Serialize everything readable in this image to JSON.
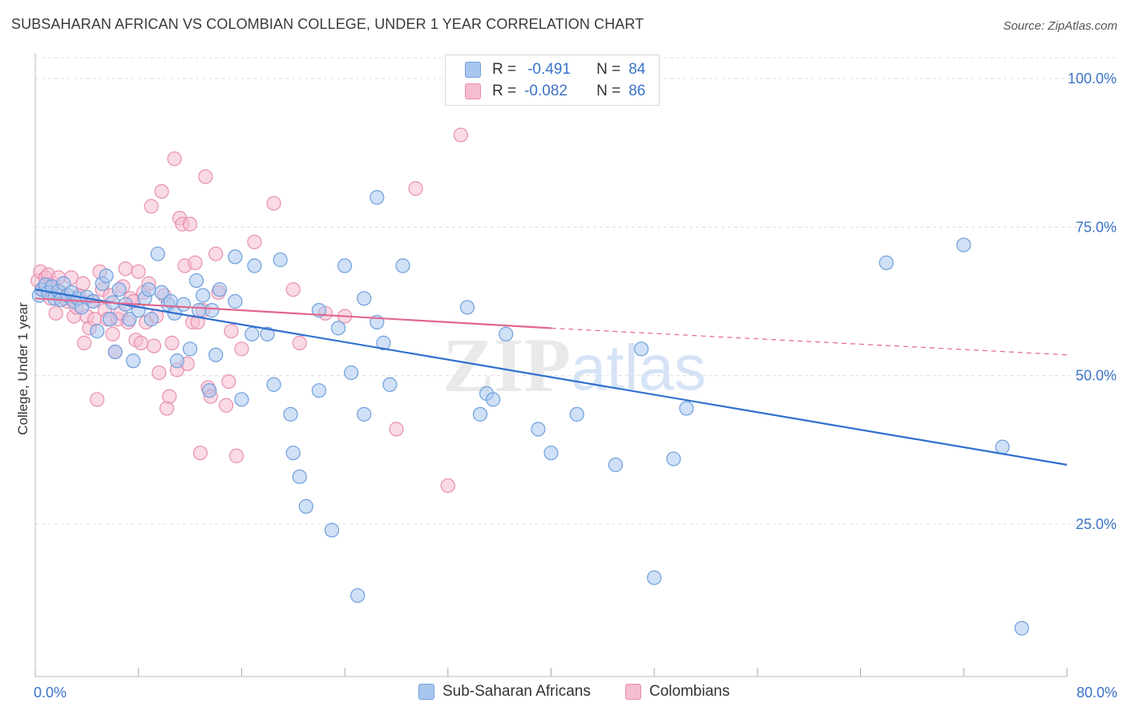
{
  "title": "SUBSAHARAN AFRICAN VS COLOMBIAN COLLEGE, UNDER 1 YEAR CORRELATION CHART",
  "source": "Source: ZipAtlas.com",
  "watermark": {
    "zip": "ZIP",
    "atlas": "atlas"
  },
  "legend": {
    "r_label": "R =",
    "n_label": "N =",
    "rows": [
      {
        "r": "-0.491",
        "n": "84"
      },
      {
        "r": "-0.082",
        "n": "86"
      }
    ]
  },
  "colors": {
    "blue_fill": "#a9c6ef",
    "blue_stroke": "#6e9fdc",
    "blue_line": "#2f6fce",
    "pink_fill": "#f6bcd0",
    "pink_stroke": "#e88fae",
    "pink_line": "#e2668e",
    "axis_text": "#3b73c8",
    "grid": "#dcdcdc"
  },
  "chart_data": {
    "type": "scatter",
    "title": "SUBSAHARAN AFRICAN VS COLOMBIAN COLLEGE, UNDER 1 YEAR CORRELATION CHART",
    "xlabel": "",
    "ylabel": "College, Under 1 year",
    "xlim": [
      0,
      80
    ],
    "ylim": [
      0,
      105
    ],
    "x_tick_labels": [
      "0.0%",
      "80.0%"
    ],
    "y_ticks": [
      25,
      50,
      75,
      100
    ],
    "y_tick_labels": [
      "25.0%",
      "50.0%",
      "75.0%",
      "100.0%"
    ],
    "legend_position": "top-center",
    "series": [
      {
        "name": "Sub-Saharan Africans",
        "R": -0.491,
        "N": 84,
        "trend": {
          "x0": 0,
          "y0": 64.5,
          "x1": 80,
          "y1": 35.0
        },
        "points": [
          [
            0.3,
            63.5
          ],
          [
            0.5,
            64.5
          ],
          [
            0.8,
            65.3
          ],
          [
            1.0,
            64.0
          ],
          [
            1.3,
            65.0
          ],
          [
            1.5,
            63.0
          ],
          [
            1.8,
            64.2
          ],
          [
            2.0,
            62.8
          ],
          [
            2.2,
            65.5
          ],
          [
            2.5,
            63.5
          ],
          [
            2.8,
            64.0
          ],
          [
            3.0,
            62.5
          ],
          [
            3.3,
            63.0
          ],
          [
            3.6,
            61.5
          ],
          [
            4.0,
            63.2
          ],
          [
            4.5,
            62.5
          ],
          [
            4.8,
            57.5
          ],
          [
            5.2,
            65.5
          ],
          [
            5.5,
            66.8
          ],
          [
            5.8,
            59.5
          ],
          [
            6.0,
            62.3
          ],
          [
            6.2,
            54.0
          ],
          [
            6.5,
            64.5
          ],
          [
            7.0,
            62.0
          ],
          [
            7.3,
            59.5
          ],
          [
            7.6,
            52.5
          ],
          [
            8.0,
            61.0
          ],
          [
            8.5,
            63.0
          ],
          [
            8.8,
            64.5
          ],
          [
            9.0,
            59.5
          ],
          [
            9.5,
            70.5
          ],
          [
            9.8,
            64.0
          ],
          [
            10.3,
            62.0
          ],
          [
            10.5,
            62.5
          ],
          [
            10.8,
            60.5
          ],
          [
            11.0,
            52.5
          ],
          [
            11.5,
            62.0
          ],
          [
            12.0,
            54.5
          ],
          [
            12.5,
            66.0
          ],
          [
            12.7,
            61.0
          ],
          [
            13.0,
            63.5
          ],
          [
            13.5,
            47.5
          ],
          [
            13.7,
            61.0
          ],
          [
            14.0,
            53.5
          ],
          [
            14.3,
            64.5
          ],
          [
            15.5,
            70.0
          ],
          [
            15.5,
            62.5
          ],
          [
            16.0,
            46.0
          ],
          [
            16.8,
            57.0
          ],
          [
            17.0,
            68.5
          ],
          [
            18.0,
            57.0
          ],
          [
            18.5,
            48.5
          ],
          [
            19.0,
            69.5
          ],
          [
            19.8,
            43.5
          ],
          [
            20.0,
            37.0
          ],
          [
            20.5,
            33.0
          ],
          [
            21.0,
            28.0
          ],
          [
            22.0,
            61.0
          ],
          [
            22.0,
            47.5
          ],
          [
            23.0,
            24.0
          ],
          [
            23.5,
            58.0
          ],
          [
            24.0,
            68.5
          ],
          [
            24.5,
            50.5
          ],
          [
            25.0,
            13.0
          ],
          [
            25.5,
            63.0
          ],
          [
            25.5,
            43.5
          ],
          [
            26.5,
            59.0
          ],
          [
            26.5,
            80.0
          ],
          [
            27.0,
            55.5
          ],
          [
            27.5,
            48.5
          ],
          [
            28.5,
            68.5
          ],
          [
            33.5,
            61.5
          ],
          [
            34.5,
            43.5
          ],
          [
            35.0,
            47.0
          ],
          [
            35.5,
            46.0
          ],
          [
            36.5,
            57.0
          ],
          [
            39.0,
            41.0
          ],
          [
            40.0,
            37.0
          ],
          [
            42.0,
            43.5
          ],
          [
            45.0,
            35.0
          ],
          [
            47.0,
            54.5
          ],
          [
            48.0,
            16.0
          ],
          [
            49.5,
            36.0
          ],
          [
            50.5,
            44.5
          ],
          [
            66.0,
            69.0
          ],
          [
            72.0,
            72.0
          ],
          [
            75.0,
            38.0
          ],
          [
            76.5,
            7.5
          ]
        ]
      },
      {
        "name": "Colombians",
        "R": -0.082,
        "N": 86,
        "trend": {
          "x0": 0,
          "y0": 63.0,
          "x1": 40,
          "y1": 58.0
        },
        "trend_extension": {
          "x0": 40,
          "y0": 58.0,
          "x1": 80,
          "y1": 53.5
        },
        "points": [
          [
            0.2,
            66.0
          ],
          [
            0.4,
            67.5
          ],
          [
            0.6,
            64.5
          ],
          [
            0.8,
            66.5
          ],
          [
            1.0,
            67.0
          ],
          [
            1.2,
            63.0
          ],
          [
            1.4,
            65.5
          ],
          [
            1.6,
            60.5
          ],
          [
            1.8,
            66.5
          ],
          [
            2.0,
            64.0
          ],
          [
            2.3,
            63.0
          ],
          [
            2.5,
            62.5
          ],
          [
            2.8,
            66.5
          ],
          [
            3.0,
            60.0
          ],
          [
            3.2,
            61.5
          ],
          [
            3.4,
            63.5
          ],
          [
            3.7,
            65.5
          ],
          [
            3.8,
            55.5
          ],
          [
            4.0,
            60.0
          ],
          [
            4.2,
            58.0
          ],
          [
            4.4,
            62.5
          ],
          [
            4.6,
            59.5
          ],
          [
            4.8,
            46.0
          ],
          [
            5.0,
            67.5
          ],
          [
            5.2,
            64.5
          ],
          [
            5.4,
            61.0
          ],
          [
            5.6,
            59.5
          ],
          [
            5.8,
            63.5
          ],
          [
            6.0,
            57.0
          ],
          [
            6.2,
            54.0
          ],
          [
            6.4,
            59.5
          ],
          [
            6.6,
            60.5
          ],
          [
            6.8,
            65.0
          ],
          [
            7.0,
            68.0
          ],
          [
            7.2,
            59.0
          ],
          [
            7.4,
            63.0
          ],
          [
            7.6,
            62.5
          ],
          [
            7.8,
            56.0
          ],
          [
            8.0,
            67.5
          ],
          [
            8.2,
            55.5
          ],
          [
            8.4,
            64.0
          ],
          [
            8.6,
            59.0
          ],
          [
            8.8,
            65.5
          ],
          [
            9.0,
            78.5
          ],
          [
            9.2,
            55.0
          ],
          [
            9.4,
            60.0
          ],
          [
            9.6,
            50.5
          ],
          [
            9.8,
            81.0
          ],
          [
            10.0,
            63.5
          ],
          [
            10.2,
            44.5
          ],
          [
            10.4,
            46.5
          ],
          [
            10.6,
            55.5
          ],
          [
            10.8,
            86.5
          ],
          [
            11.0,
            51.0
          ],
          [
            11.2,
            76.5
          ],
          [
            11.4,
            75.5
          ],
          [
            11.6,
            68.5
          ],
          [
            11.8,
            52.0
          ],
          [
            12.0,
            75.5
          ],
          [
            12.2,
            59.0
          ],
          [
            12.4,
            69.0
          ],
          [
            12.6,
            59.0
          ],
          [
            12.8,
            37.0
          ],
          [
            13.0,
            61.0
          ],
          [
            13.2,
            83.5
          ],
          [
            13.4,
            48.0
          ],
          [
            13.6,
            46.5
          ],
          [
            14.0,
            70.5
          ],
          [
            14.2,
            64.0
          ],
          [
            14.8,
            45.0
          ],
          [
            15.0,
            49.0
          ],
          [
            15.2,
            57.5
          ],
          [
            15.6,
            36.5
          ],
          [
            16.0,
            54.5
          ],
          [
            17.0,
            72.5
          ],
          [
            18.5,
            79.0
          ],
          [
            20.0,
            64.5
          ],
          [
            20.5,
            55.5
          ],
          [
            22.5,
            60.5
          ],
          [
            24.0,
            60.0
          ],
          [
            28.0,
            41.0
          ],
          [
            29.5,
            81.5
          ],
          [
            32.0,
            31.5
          ],
          [
            33.0,
            90.5
          ]
        ]
      }
    ]
  },
  "bottom_legend": [
    "Sub-Saharan Africans",
    "Colombians"
  ]
}
